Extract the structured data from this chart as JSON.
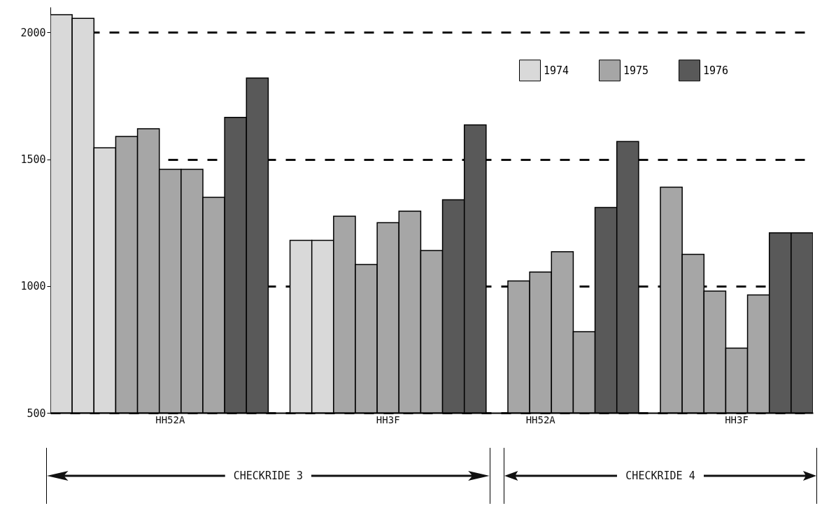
{
  "chart_data": {
    "type": "bar",
    "categories": [
      null,
      null,
      null,
      null,
      null,
      "HH52A",
      null,
      null,
      null,
      null,
      null,
      null,
      null,
      null,
      null,
      "HH3F",
      null,
      null,
      null,
      null,
      null,
      null,
      "HH52A",
      null,
      null,
      null,
      null,
      null,
      null,
      null,
      null,
      "HH3F",
      null,
      null,
      null
    ],
    "series": [
      {
        "name": "1974",
        "color": "#d9d9d9",
        "values": [
          2070,
          2055,
          1545,
          null,
          null,
          null,
          null,
          null,
          null,
          null,
          null,
          1180,
          1180,
          null,
          null,
          null,
          null,
          null,
          null,
          null,
          null,
          null,
          null,
          null,
          null,
          null,
          null,
          null,
          null,
          null,
          null,
          null,
          null,
          null,
          null
        ]
      },
      {
        "name": "1975",
        "color": "#a6a6a6",
        "values": [
          null,
          null,
          null,
          1590,
          1620,
          1460,
          1460,
          1350,
          null,
          null,
          null,
          null,
          null,
          1275,
          1085,
          1250,
          1295,
          1140,
          null,
          null,
          null,
          1020,
          1055,
          1135,
          820,
          null,
          null,
          null,
          1390,
          1125,
          980,
          755,
          965,
          null,
          null
        ]
      },
      {
        "name": "1976",
        "color": "#595959",
        "values": [
          null,
          null,
          null,
          null,
          null,
          null,
          null,
          null,
          1665,
          1820,
          null,
          null,
          null,
          null,
          null,
          null,
          null,
          null,
          1340,
          1635,
          null,
          null,
          null,
          null,
          null,
          1310,
          1570,
          null,
          null,
          null,
          null,
          null,
          null,
          1210,
          1210
        ]
      }
    ],
    "ylim": [
      500,
      2100
    ],
    "yticks": [
      500,
      1000,
      1500,
      2000
    ],
    "grid": "y",
    "legend": "top right",
    "annotations": [
      "CHECKRIDE 3",
      "CHECKRIDE 4"
    ]
  }
}
